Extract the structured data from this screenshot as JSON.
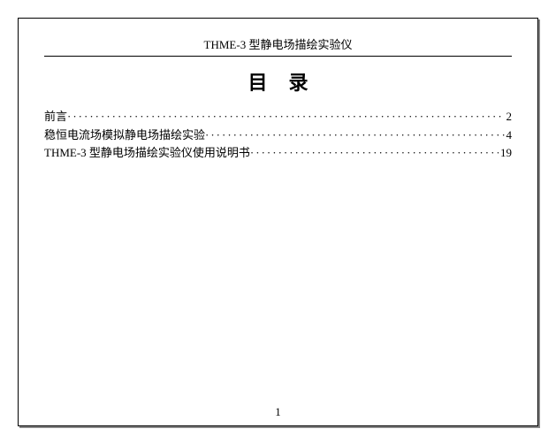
{
  "header": {
    "title": "THME-3 型静电场描绘实验仪"
  },
  "toc": {
    "title": "目录",
    "entries": [
      {
        "label": "前言",
        "page": "2"
      },
      {
        "label": "稳恒电流场模拟静电场描绘实验",
        "page": "4"
      },
      {
        "label": "THME-3 型静电场描绘实验仪使用说明书 ",
        "page": "19"
      }
    ]
  },
  "pageNumber": "1",
  "colors": {
    "text": "#000000",
    "background": "#ffffff",
    "border": "#000000",
    "shadow": "#888888"
  },
  "typography": {
    "header_fontsize": 13,
    "toc_title_fontsize": 22,
    "toc_entry_fontsize": 13,
    "page_number_fontsize": 13,
    "font_family": "SimSun"
  }
}
